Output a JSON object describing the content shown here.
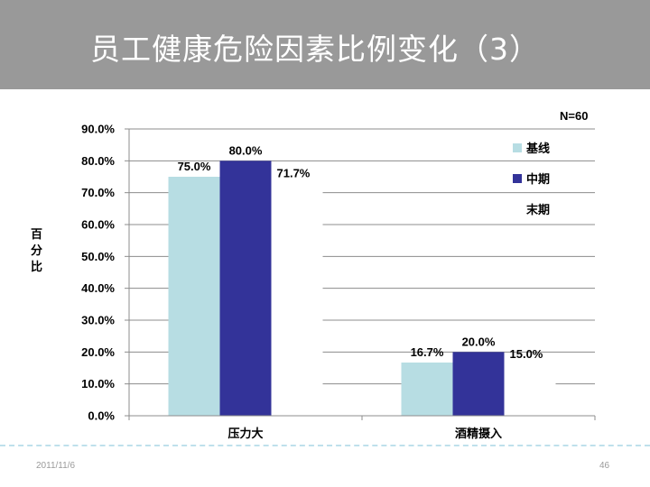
{
  "slide": {
    "title": "员工健康危险因素比例变化（3）",
    "footer_date": "2011/11/6",
    "page_number": "46"
  },
  "chart_data": {
    "type": "bar",
    "annotation": "N=60",
    "ylabel": "百分比",
    "xlabel": "",
    "ylim": [
      0,
      90
    ],
    "y_ticks": [
      "0.0%",
      "10.0%",
      "20.0%",
      "30.0%",
      "40.0%",
      "50.0%",
      "60.0%",
      "70.0%",
      "80.0%",
      "90.0%"
    ],
    "categories": [
      "压力大",
      "酒精摄入"
    ],
    "legend_position": "right",
    "grid": true,
    "series": [
      {
        "name": "基线",
        "values": [
          75.0,
          16.7
        ],
        "labels": [
          "75.0%",
          "16.7%"
        ],
        "color": "#b7dde3"
      },
      {
        "name": "中期",
        "values": [
          80.0,
          20.0
        ],
        "labels": [
          "80.0%",
          "20.0%"
        ],
        "color": "#333399"
      },
      {
        "name": "末期",
        "values": [
          71.7,
          15.0
        ],
        "labels": [
          "71.7%",
          "15.0%"
        ],
        "color": "#ffffff"
      }
    ]
  }
}
